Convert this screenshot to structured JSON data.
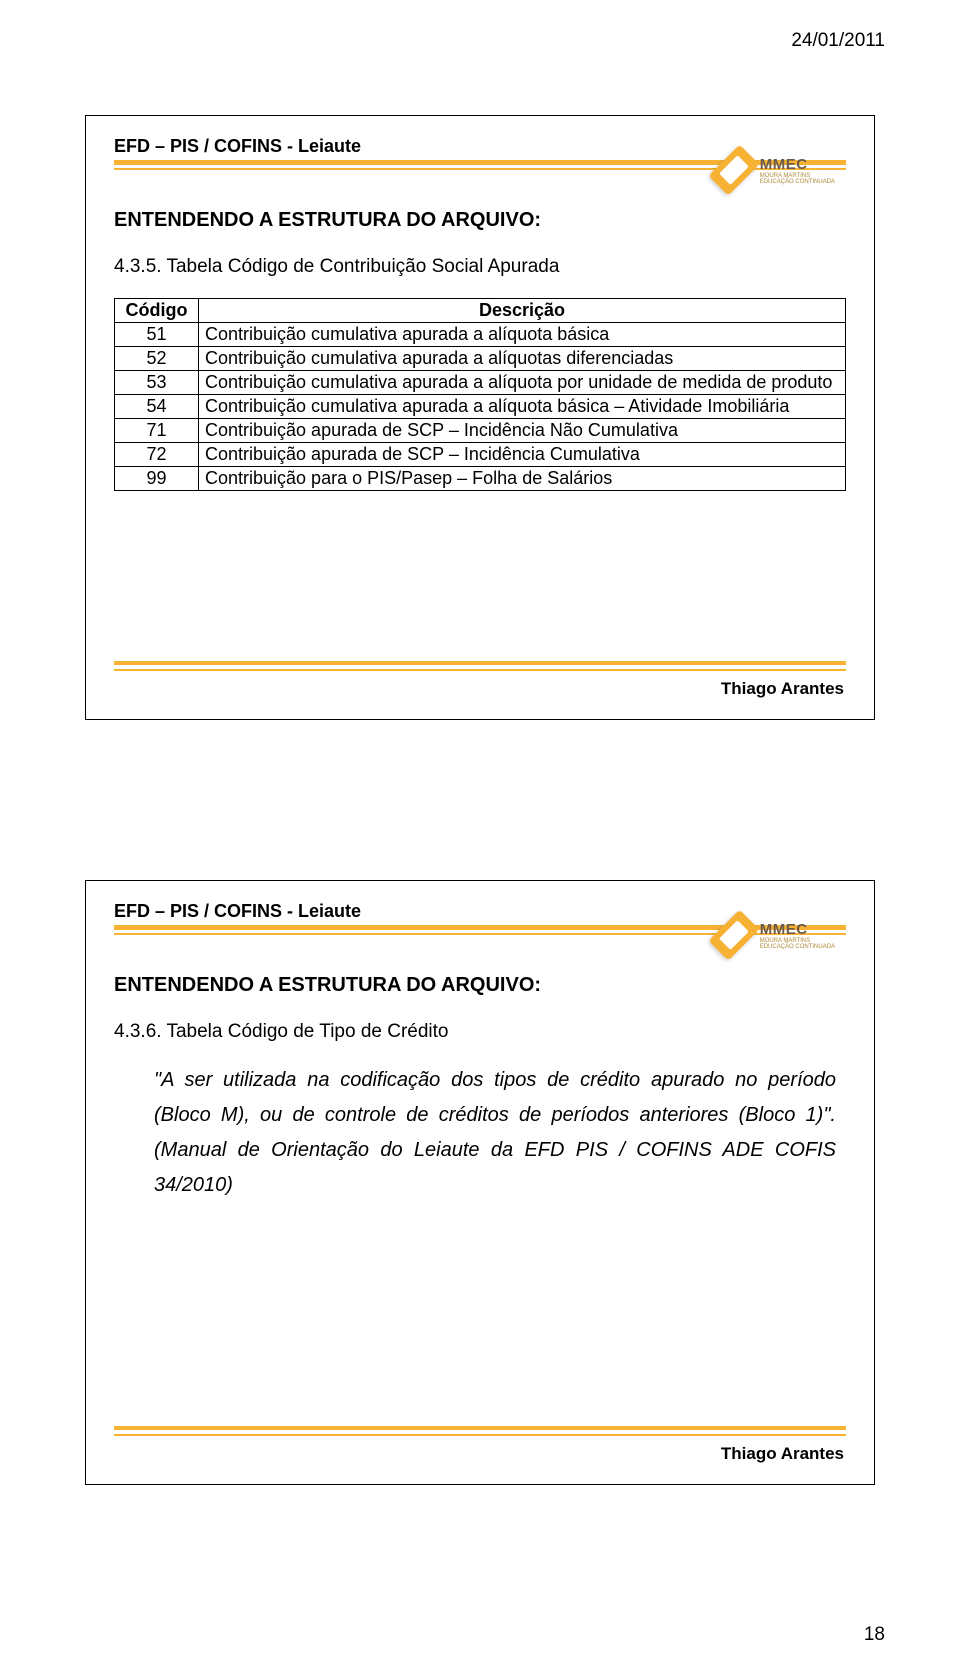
{
  "page": {
    "date": "24/01/2011",
    "number": "18"
  },
  "panel1": {
    "header": "EFD – PIS / COFINS - Leiaute",
    "section_title": "ENTENDENDO A ESTRUTURA DO ARQUIVO:",
    "subsection": "4.3.5. Tabela Código de Contribuição Social Apurada",
    "author": "Thiago Arantes",
    "logo": {
      "main": "MMEC",
      "sub": "MOURA MARTINS EDUCAÇÃO CONTINUADA"
    },
    "table": {
      "columns": [
        "Código",
        "Descrição"
      ],
      "col_widths": [
        "84px",
        "auto"
      ],
      "rows": [
        {
          "code": "51",
          "desc": "Contribuição cumulativa apurada a alíquota básica"
        },
        {
          "code": "52",
          "desc": "Contribuição cumulativa apurada a alíquotas diferenciadas"
        },
        {
          "code": "53",
          "desc": "Contribuição cumulativa apurada a alíquota por unidade de medida de produto"
        },
        {
          "code": "54",
          "desc": "Contribuição cumulativa apurada a alíquota básica – Atividade Imobiliária"
        },
        {
          "code": "71",
          "desc": "Contribuição apurada de SCP – Incidência Não Cumulativa"
        },
        {
          "code": "72",
          "desc": "Contribuição apurada de SCP – Incidência Cumulativa"
        },
        {
          "code": "99",
          "desc": "Contribuição para o PIS/Pasep – Folha de Salários"
        }
      ]
    },
    "style": {
      "accent_color": "#f8b233",
      "border_color": "#000000",
      "font_family": "Arial",
      "header_fontsize": 18,
      "title_fontsize": 20,
      "body_fontsize": 18
    }
  },
  "panel2": {
    "header": "EFD – PIS / COFINS - Leiaute",
    "section_title": "ENTENDENDO A ESTRUTURA DO ARQUIVO:",
    "subsection": "4.3.6. Tabela Código de Tipo de Crédito",
    "quote": "\"A ser utilizada na codificação dos tipos de crédito apurado no período (Bloco M), ou de controle de créditos de períodos anteriores (Bloco 1)\". (Manual de Orientação do Leiaute da EFD PIS / COFINS ADE COFIS 34/2010)",
    "author": "Thiago Arantes",
    "logo": {
      "main": "MMEC",
      "sub": "MOURA MARTINS EDUCAÇÃO CONTINUADA"
    },
    "style": {
      "accent_color": "#f8b233",
      "quote_fontsize": 20,
      "quote_line_height": 1.75
    }
  }
}
